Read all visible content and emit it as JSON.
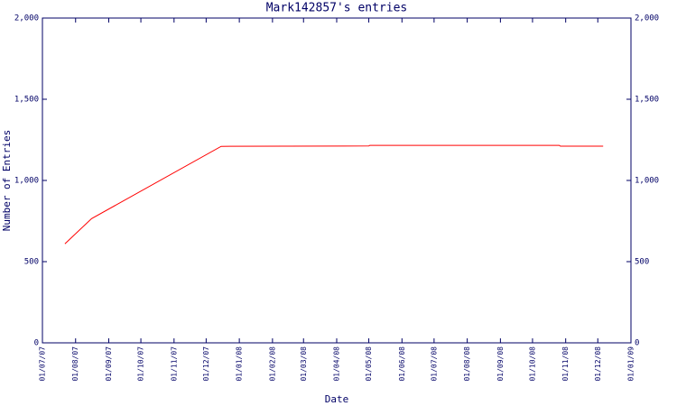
{
  "chart_data": {
    "type": "line",
    "title": "Mark142857's entries",
    "x_label": "Date",
    "y_label": "Number of Entries",
    "x": [
      "2007-07-22",
      "2007-08-16",
      "2007-12-15",
      "2008-05-01",
      "2008-05-02",
      "2008-10-26",
      "2008-10-27",
      "2008-12-06"
    ],
    "series": [
      {
        "name": "Entries",
        "color": "#ff0000",
        "values": [
          610,
          765,
          1210,
          1212,
          1216,
          1216,
          1211,
          1211
        ]
      }
    ],
    "xlim": [
      "2007-07-01",
      "2009-01-01"
    ],
    "xticks": [
      {
        "value": "2007-07-01",
        "label": "01/07/07"
      },
      {
        "value": "2007-08-01",
        "label": "01/08/07"
      },
      {
        "value": "2007-09-01",
        "label": "01/09/07"
      },
      {
        "value": "2007-10-01",
        "label": "01/10/07"
      },
      {
        "value": "2007-11-01",
        "label": "01/11/07"
      },
      {
        "value": "2007-12-01",
        "label": "01/12/07"
      },
      {
        "value": "2008-01-01",
        "label": "01/01/08"
      },
      {
        "value": "2008-02-01",
        "label": "01/02/08"
      },
      {
        "value": "2008-03-01",
        "label": "01/03/08"
      },
      {
        "value": "2008-04-01",
        "label": "01/04/08"
      },
      {
        "value": "2008-05-01",
        "label": "01/05/08"
      },
      {
        "value": "2008-06-01",
        "label": "01/06/08"
      },
      {
        "value": "2008-07-01",
        "label": "01/07/08"
      },
      {
        "value": "2008-08-01",
        "label": "01/08/08"
      },
      {
        "value": "2008-09-01",
        "label": "01/09/08"
      },
      {
        "value": "2008-10-01",
        "label": "01/10/08"
      },
      {
        "value": "2008-11-01",
        "label": "01/11/08"
      },
      {
        "value": "2008-12-01",
        "label": "01/12/08"
      },
      {
        "value": "2009-01-01",
        "label": "01/01/09"
      }
    ],
    "ylim": [
      0,
      2000
    ],
    "yticks": [
      0,
      500,
      {
        "value": 1000,
        "label": "1,000"
      },
      {
        "value": 1500,
        "label": "1,500"
      },
      {
        "value": 2000,
        "label": "2,000"
      }
    ],
    "grid": false
  }
}
